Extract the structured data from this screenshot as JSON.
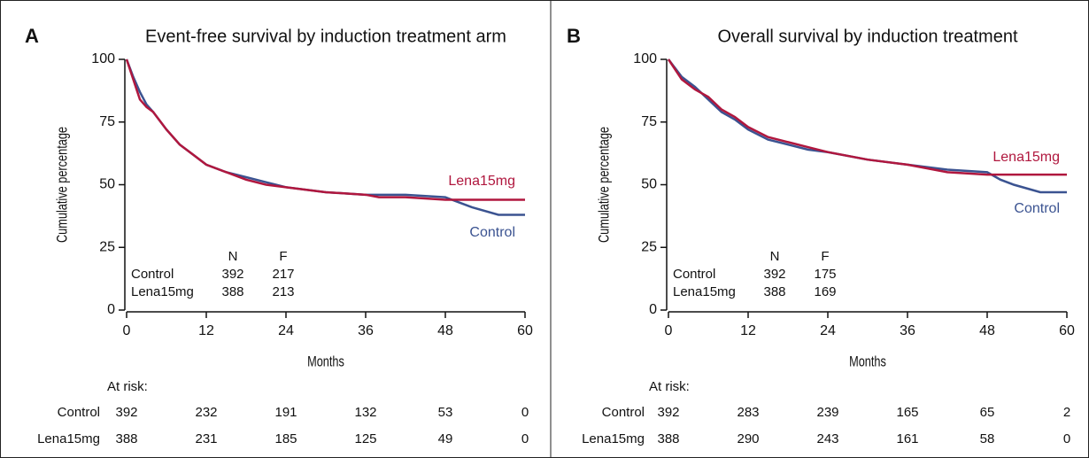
{
  "chart_data": [
    {
      "type": "line",
      "panel": "A",
      "title": "Event-free survival by induction treatment arm",
      "xlabel": "Months",
      "ylabel": "Cumulative percentage",
      "xlim": [
        0,
        60
      ],
      "xticks": [
        0,
        12,
        24,
        36,
        48,
        60
      ],
      "ylim": [
        0,
        100
      ],
      "yticks": [
        0,
        25,
        50,
        75,
        100
      ],
      "series": [
        {
          "name": "Control",
          "color": "#3b5391",
          "x": [
            0,
            1,
            2,
            3,
            4,
            6,
            8,
            10,
            12,
            15,
            18,
            21,
            24,
            30,
            36,
            42,
            48,
            50,
            52,
            56,
            60
          ],
          "values": [
            100,
            93,
            87,
            82,
            79,
            72,
            66,
            62,
            58,
            55,
            53,
            51,
            49,
            47,
            46,
            46,
            45,
            43,
            41,
            38,
            38
          ]
        },
        {
          "name": "Lena15mg",
          "color": "#b0173e",
          "x": [
            0,
            1,
            2,
            3,
            4,
            6,
            8,
            10,
            12,
            15,
            18,
            21,
            24,
            30,
            36,
            38,
            42,
            48,
            60
          ],
          "values": [
            100,
            92,
            84,
            81,
            79,
            72,
            66,
            62,
            58,
            55,
            52,
            50,
            49,
            47,
            46,
            45,
            45,
            44,
            44
          ]
        }
      ],
      "summary": {
        "headers": [
          "N",
          "F"
        ],
        "rows": [
          [
            392,
            217
          ],
          [
            388,
            213
          ]
        ]
      },
      "at_risk": {
        "title": "At risk:",
        "rows": [
          [
            392,
            232,
            191,
            132,
            53,
            0
          ],
          [
            388,
            231,
            185,
            125,
            49,
            0
          ]
        ]
      }
    },
    {
      "type": "line",
      "panel": "B",
      "title": "Overall survival by induction treatment",
      "xlabel": "Months",
      "ylabel": "Cumulative percentage",
      "xlim": [
        0,
        60
      ],
      "xticks": [
        0,
        12,
        24,
        36,
        48,
        60
      ],
      "ylim": [
        0,
        100
      ],
      "yticks": [
        0,
        25,
        50,
        75,
        100
      ],
      "series": [
        {
          "name": "Control",
          "color": "#3b5391",
          "x": [
            0,
            2,
            4,
            6,
            8,
            10,
            12,
            15,
            18,
            21,
            24,
            30,
            36,
            42,
            48,
            50,
            52,
            56,
            60
          ],
          "values": [
            100,
            93,
            89,
            84,
            79,
            76,
            72,
            68,
            66,
            64,
            63,
            60,
            58,
            56,
            55,
            52,
            50,
            47,
            47
          ]
        },
        {
          "name": "Lena15mg",
          "color": "#b0173e",
          "x": [
            0,
            2,
            4,
            6,
            8,
            10,
            12,
            15,
            18,
            21,
            24,
            30,
            36,
            42,
            48,
            60
          ],
          "values": [
            100,
            92,
            88,
            85,
            80,
            77,
            73,
            69,
            67,
            65,
            63,
            60,
            58,
            55,
            54,
            54
          ]
        }
      ],
      "summary": {
        "headers": [
          "N",
          "F"
        ],
        "rows": [
          [
            392,
            175
          ],
          [
            388,
            169
          ]
        ]
      },
      "at_risk": {
        "title": "At risk:",
        "rows": [
          [
            392,
            283,
            239,
            165,
            65,
            2
          ],
          [
            388,
            290,
            243,
            161,
            58,
            0
          ]
        ]
      }
    }
  ]
}
